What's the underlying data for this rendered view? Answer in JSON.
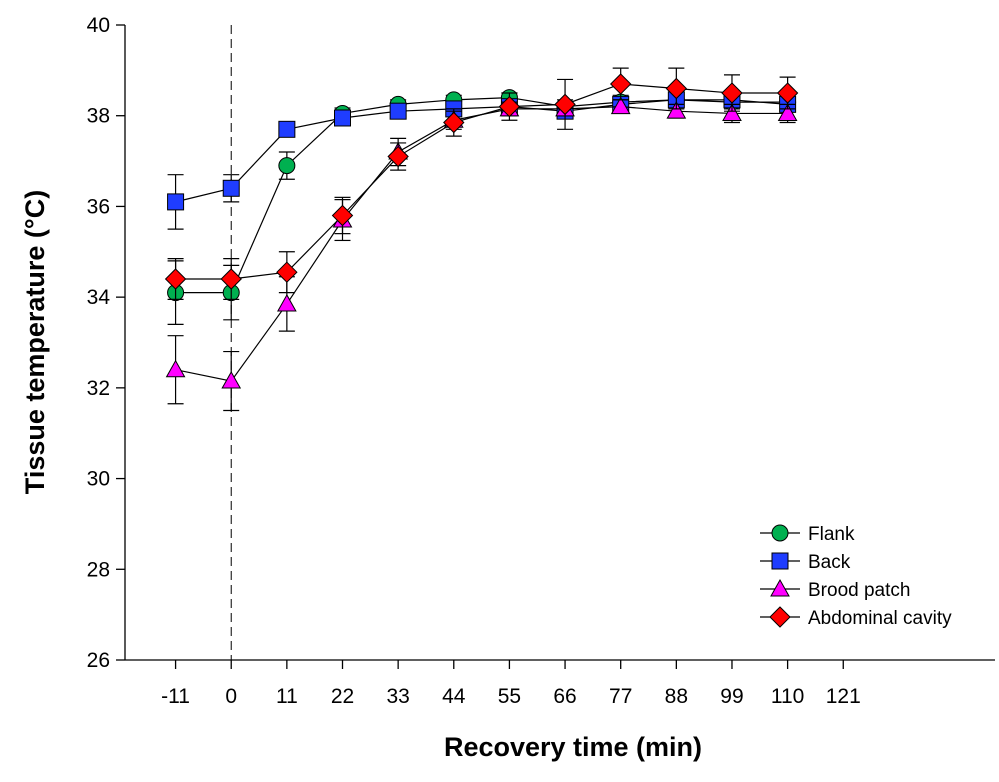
{
  "chart_data": {
    "type": "line",
    "xlabel": "Recovery time (min)",
    "ylabel": "Tissue temperature (°C)",
    "xlim": [
      -21,
      151
    ],
    "ylim": [
      26,
      40
    ],
    "x_ticks": [
      -11,
      0,
      11,
      22,
      33,
      44,
      55,
      66,
      77,
      88,
      99,
      110,
      121
    ],
    "y_ticks": [
      26,
      28,
      30,
      32,
      34,
      36,
      38,
      40
    ],
    "reference_line": {
      "x": 0,
      "style": "dashed"
    },
    "legend_position": "bottom-right",
    "x": [
      -11,
      0,
      11,
      22,
      33,
      44,
      55,
      66,
      77,
      88,
      99,
      110
    ],
    "series": [
      {
        "name": "Flank",
        "marker": "circle",
        "color": "#00b050",
        "values": [
          34.1,
          34.1,
          36.9,
          38.05,
          38.25,
          38.35,
          38.4,
          38.2,
          38.3,
          38.35,
          38.3,
          38.3
        ],
        "errors": [
          0.7,
          0.6,
          0.3,
          0.12,
          0.1,
          0.1,
          0.1,
          0.15,
          0.15,
          0.12,
          0.15,
          0.15
        ]
      },
      {
        "name": "Back",
        "marker": "square",
        "color": "#1f3dff",
        "values": [
          36.1,
          36.4,
          37.7,
          37.95,
          38.1,
          38.15,
          38.2,
          38.1,
          38.25,
          38.35,
          38.35,
          38.25
        ],
        "errors": [
          0.6,
          0.3,
          0.1,
          0.1,
          0.1,
          0.1,
          0.1,
          0.15,
          0.1,
          0.1,
          0.1,
          0.1
        ]
      },
      {
        "name": "Brood patch",
        "marker": "triangle",
        "color": "#ff00ff",
        "values": [
          32.4,
          32.15,
          33.85,
          35.7,
          37.2,
          37.9,
          38.15,
          38.15,
          38.2,
          38.1,
          38.05,
          38.05
        ],
        "errors": [
          0.75,
          0.65,
          0.6,
          0.45,
          0.3,
          0.2,
          0.15,
          0.15,
          0.15,
          0.15,
          0.2,
          0.2
        ]
      },
      {
        "name": "Abdominal cavity",
        "marker": "diamond",
        "color": "#ff0000",
        "values": [
          34.4,
          34.4,
          34.55,
          35.8,
          37.1,
          37.85,
          38.2,
          38.25,
          38.7,
          38.6,
          38.5,
          38.5
        ],
        "errors": [
          0.45,
          0.45,
          0.45,
          0.4,
          0.3,
          0.3,
          0.3,
          0.55,
          0.35,
          0.45,
          0.4,
          0.35
        ]
      }
    ]
  }
}
